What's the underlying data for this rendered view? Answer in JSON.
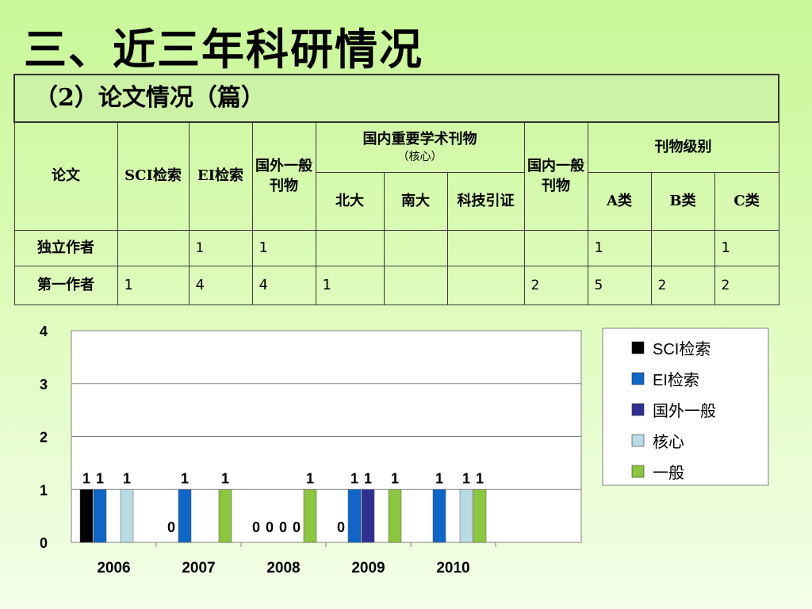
{
  "title": "三、近三年科研情况",
  "table": {
    "caption": "（2）论文情况（篇）",
    "headers": {
      "lunwen": "论文",
      "sci": "SCI检索",
      "ei": "EI检索",
      "guowai": "国外一般刊物",
      "guonei_zhongyao": "国内重要学术刊物",
      "hexin": "（核心）",
      "guonei_yiban": "国内一般刊物",
      "kanwu_jibie": "刊物级别",
      "beida": "北大",
      "nanda": "南大",
      "keji": "科技引证",
      "a": "A类",
      "b": "B类",
      "c": "C类"
    },
    "rows": [
      {
        "label": "独立作者",
        "cells": [
          "",
          "1",
          "1",
          "",
          "",
          "",
          "",
          "1",
          "",
          "1"
        ]
      },
      {
        "label": "第一作者",
        "cells": [
          "1",
          "4",
          "4",
          "1",
          "",
          "",
          "2",
          "5",
          "2",
          "2"
        ]
      }
    ]
  },
  "chart_data": {
    "type": "bar",
    "categories": [
      "2006",
      "2007",
      "2008",
      "2009",
      "2010"
    ],
    "ylim": [
      0,
      4
    ],
    "yticks": [
      "0",
      "1",
      "2",
      "3",
      "4"
    ],
    "legend_position": "right",
    "grid": true,
    "series": [
      {
        "name": "SCI检索",
        "color": "#000000",
        "values": [
          1,
          0,
          0,
          0,
          0
        ]
      },
      {
        "name": "EI检索",
        "color": "#0e66c9",
        "values": [
          1,
          1,
          0,
          1,
          1
        ]
      },
      {
        "name": "国外一般",
        "color": "#2e3192",
        "values": [
          0,
          0,
          0,
          1,
          0
        ]
      },
      {
        "name": "核心",
        "color": "#b9dce4",
        "values": [
          1,
          0,
          0,
          0,
          1
        ]
      },
      {
        "name": "一般",
        "color": "#8cc63f",
        "values": [
          0,
          1,
          1,
          1,
          1
        ]
      }
    ],
    "data_labels": [
      [
        {
          "text": "1",
          "series": 0
        },
        {
          "text": "1",
          "series": 1
        },
        {
          "text": "1",
          "series": 3
        }
      ],
      [
        {
          "text": "0",
          "series": 0
        },
        {
          "text": "1",
          "series": 1
        },
        {
          "text": "1",
          "series": 4
        }
      ],
      [
        {
          "text": "0",
          "series": 0
        },
        {
          "text": "0",
          "series": 1
        },
        {
          "text": "0",
          "series": 2
        },
        {
          "text": "0",
          "series": 3
        },
        {
          "text": "1",
          "series": 4
        }
      ],
      [
        {
          "text": "0",
          "series": 0
        },
        {
          "text": "1",
          "series": 1
        },
        {
          "text": "1",
          "series": 2
        },
        {
          "text": "1",
          "series": 4
        }
      ],
      [
        {
          "text": "1",
          "series": 1
        },
        {
          "text": "1",
          "series": 3
        },
        {
          "text": "1",
          "series": 4
        }
      ]
    ]
  }
}
